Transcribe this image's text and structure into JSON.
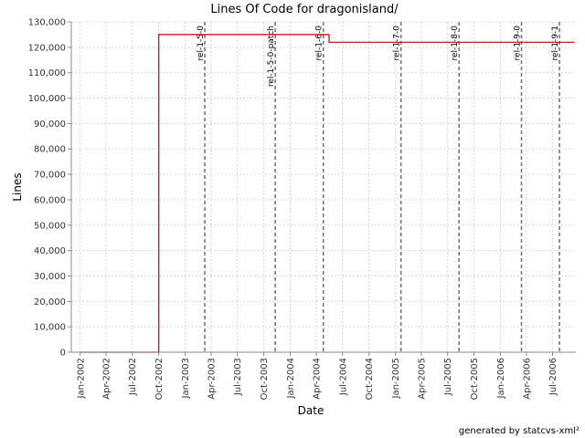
{
  "chart_data": {
    "type": "line",
    "title": "Lines Of Code for dragonisland/",
    "xlabel": "Date",
    "ylabel": "Lines",
    "ylim": [
      0,
      130000
    ],
    "xlim": [
      "2001-12-01",
      "2006-09-20"
    ],
    "grid": true,
    "series": [
      {
        "color": "#cc0000",
        "x": [
          "2002-01-01",
          "2002-10-01",
          "2002-10-01",
          "2004-05-15",
          "2004-05-15",
          "2006-09-15"
        ],
        "y": [
          0,
          0,
          125000,
          125000,
          122000,
          122000
        ]
      }
    ],
    "x_ticks": [
      "Jan-2002",
      "Apr-2002",
      "Jul-2002",
      "Oct-2002",
      "Jan-2003",
      "Apr-2003",
      "Jul-2003",
      "Oct-2003",
      "Jan-2004",
      "Apr-2004",
      "Jul-2004",
      "Oct-2004",
      "Jan-2005",
      "Apr-2005",
      "Jul-2005",
      "Oct-2005",
      "Jan-2006",
      "Apr-2006",
      "Jul-2006"
    ],
    "y_ticks": [
      "0",
      "10,000",
      "20,000",
      "30,000",
      "40,000",
      "50,000",
      "60,000",
      "70,000",
      "80,000",
      "90,000",
      "100,000",
      "110,000",
      "120,000",
      "130,000"
    ],
    "markers": [
      {
        "label": "rel-1-5-0",
        "date": "2003-03-10"
      },
      {
        "label": "rel-1-5-0-patch",
        "date": "2003-11-10"
      },
      {
        "label": "rel-1-6-0",
        "date": "2004-04-25"
      },
      {
        "label": "rel-1-7-0",
        "date": "2005-01-20"
      },
      {
        "label": "rel-1-8-0",
        "date": "2005-08-10"
      },
      {
        "label": "rel-1-9-0",
        "date": "2006-03-15"
      },
      {
        "label": "rel-1-9-1",
        "date": "2006-07-25"
      }
    ]
  },
  "footer": "generated by statcvs-xml²"
}
